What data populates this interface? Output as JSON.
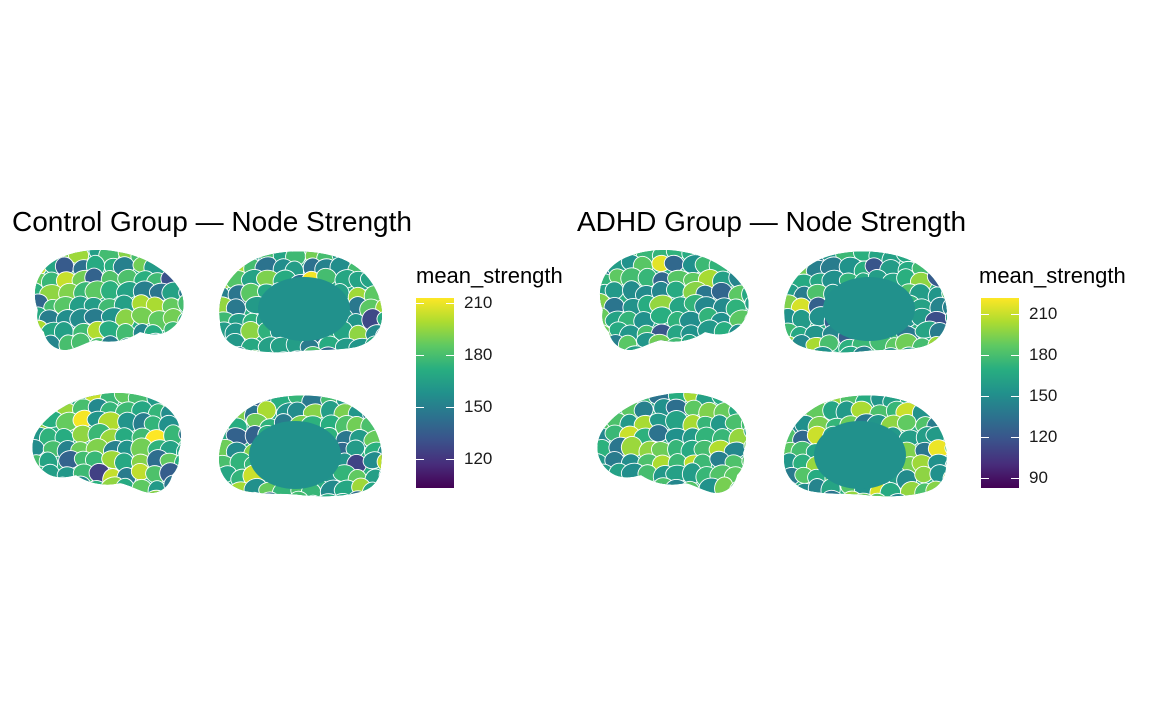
{
  "chart_data": [
    {
      "type": "heatmap",
      "title": "Control Group — Node Strength",
      "legend_title": "mean_strength",
      "legend_placement": "right",
      "palette": [
        "#440154",
        "#472d7b",
        "#3b528b",
        "#2c728e",
        "#21918c",
        "#28ae80",
        "#5ec962",
        "#addc30",
        "#fde725"
      ],
      "color_range": [
        103,
        213
      ],
      "ticks": [
        120,
        150,
        180,
        210
      ],
      "views": [
        "left-lateral",
        "right-medial",
        "right-lateral",
        "left-medial"
      ]
    },
    {
      "type": "heatmap",
      "title": "ADHD Group — Node Strength",
      "legend_title": "mean_strength",
      "legend_placement": "right",
      "palette": [
        "#440154",
        "#472d7b",
        "#3b528b",
        "#2c728e",
        "#21918c",
        "#28ae80",
        "#5ec962",
        "#addc30",
        "#fde725"
      ],
      "color_range": [
        83,
        222
      ],
      "ticks": [
        90,
        120,
        150,
        180,
        210
      ],
      "views": [
        "left-lateral",
        "right-medial",
        "right-lateral",
        "left-medial"
      ]
    }
  ]
}
